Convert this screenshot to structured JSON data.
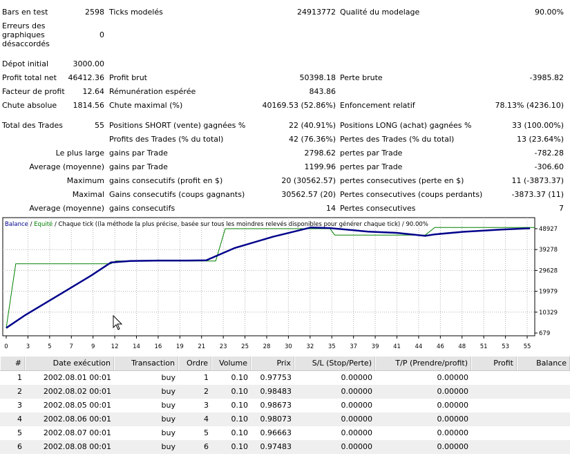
{
  "stats": {
    "row1": {
      "bars_label": "Bars en test",
      "bars_value": "2598",
      "ticks_label": "Ticks modelés",
      "ticks_value": "24913772",
      "quality_label": "Qualité du modelage",
      "quality_value": "90.00%"
    },
    "row2": {
      "errors_label_l1": "Erreurs des",
      "errors_label_l2": "graphiques",
      "errors_label_l3": "désaccordés",
      "errors_value": "0"
    },
    "row3": {
      "deposit_label": "Dépot initial",
      "deposit_value": "3000.00"
    },
    "row4": {
      "net_label": "Profit total net",
      "net_value": "46412.36",
      "gross_label": "Profit brut",
      "gross_value": "50398.18",
      "loss_label": "Perte brute",
      "loss_value": "-3985.82"
    },
    "row5": {
      "pf_label": "Facteur de profit",
      "pf_value": "12.64",
      "payoff_label": "Rémunération espérée",
      "payoff_value": "843.86"
    },
    "row6": {
      "abs_label": "Chute absolue",
      "abs_value": "1814.56",
      "max_label": "Chute maximal (%)",
      "max_value": "40169.53 (52.86%)",
      "rel_label": "Enfoncement relatif",
      "rel_value": "78.13% (4236.10)"
    },
    "row7": {
      "trades_label": "Total des Trades",
      "trades_value": "55",
      "short_label": "Positions SHORT (vente) gagnées %",
      "short_value": "22 (40.91%)",
      "long_label": "Positions LONG (achat) gagnées %",
      "long_value": "33 (100.00%)"
    },
    "row8": {
      "ptrades_label": "Profits des Trades (% du total)",
      "ptrades_value": "42 (76.36%)",
      "ltrades_label": "Pertes des Trades (% du total)",
      "ltrades_value": "13 (23.64%)"
    },
    "row9": {
      "prefix": "Le plus large",
      "gain_label": "gains par Trade",
      "gain_value": "2798.62",
      "loss_label": "pertes par Trade",
      "loss_value": "-782.28"
    },
    "row10": {
      "prefix": "Average (moyenne)",
      "gain_label": "gains par Trade",
      "gain_value": "1199.96",
      "loss_label": "pertes par Trade",
      "loss_value": "-306.60"
    },
    "row11": {
      "prefix": "Maximum",
      "gain_label": "gains consecutifs (profit en $)",
      "gain_value": "20 (30562.57)",
      "loss_label": "pertes consecutives (perte en $)",
      "loss_value": "11 (-3873.37)"
    },
    "row12": {
      "prefix": "Maximal",
      "gain_label": "Gains consecutifs (coups gagnants)",
      "gain_value": "30562.57 (20)",
      "loss_label": "Pertes consecutives (coups perdants)",
      "loss_value": "-3873.37 (11)"
    },
    "row13": {
      "prefix": "Average (moyenne)",
      "gain_label": "gains consecutifs",
      "gain_value": "14",
      "loss_label": "Pertes consecutives",
      "loss_value": "7"
    }
  },
  "chart_data": {
    "type": "line",
    "legend": {
      "balance": "Balance",
      "sep1": " / ",
      "equity": "Equité",
      "rest": " / Chaque tick ((la méthode la plus précise, basée sur tous les moindres relevés disponibles pour générer chaque tick) / 90.00%"
    },
    "x_ticks": [
      "0",
      "3",
      "5",
      "7",
      "9",
      "12",
      "14",
      "16",
      "19",
      "21",
      "23",
      "25",
      "28",
      "30",
      "32",
      "35",
      "37",
      "39",
      "41",
      "44",
      "46",
      "48",
      "51",
      "53",
      "55"
    ],
    "y_ticks": [
      "48927",
      "39278",
      "29628",
      "19979",
      "10329",
      "679"
    ],
    "ylim": [
      679,
      48927
    ],
    "xlim": [
      0,
      55.5
    ],
    "colors": {
      "balance": "#00008b",
      "equity": "#008000",
      "grid": "#b0b0b0"
    },
    "series": [
      {
        "name": "Balance",
        "x": [
          0,
          2,
          6,
          9,
          11,
          13,
          16,
          19,
          21,
          24,
          28,
          32,
          34,
          38,
          41,
          44,
          45,
          48,
          52,
          55
        ],
        "y": [
          3000,
          9000,
          19500,
          27500,
          33300,
          34000,
          34200,
          34200,
          34300,
          40000,
          45200,
          49500,
          49200,
          47600,
          47000,
          45600,
          46300,
          47500,
          48500,
          49100
        ]
      },
      {
        "name": "Equité",
        "x": [
          0,
          1,
          11,
          11.5,
          22,
          23,
          34,
          34.5,
          44,
          45,
          55.5
        ],
        "y": [
          3000,
          32700,
          32700,
          34000,
          34000,
          48927,
          48927,
          46000,
          46000,
          49500,
          49500
        ]
      }
    ]
  },
  "table": {
    "headers": [
      "#",
      "Date exécution",
      "Transaction",
      "Ordre",
      "Volume",
      "Prix",
      "S/L (Stop/Perte)",
      "T/P (Prendre/profit)",
      "Profit",
      "Balance"
    ],
    "rows": [
      [
        "1",
        "2002.08.01 00:01",
        "buy",
        "1",
        "0.10",
        "0.97753",
        "0.00000",
        "0.00000",
        "",
        ""
      ],
      [
        "2",
        "2002.08.02 00:01",
        "buy",
        "2",
        "0.10",
        "0.98483",
        "0.00000",
        "0.00000",
        "",
        ""
      ],
      [
        "3",
        "2002.08.05 00:01",
        "buy",
        "3",
        "0.10",
        "0.98673",
        "0.00000",
        "0.00000",
        "",
        ""
      ],
      [
        "4",
        "2002.08.06 00:01",
        "buy",
        "4",
        "0.10",
        "0.98073",
        "0.00000",
        "0.00000",
        "",
        ""
      ],
      [
        "5",
        "2002.08.07 00:01",
        "buy",
        "5",
        "0.10",
        "0.96663",
        "0.00000",
        "0.00000",
        "",
        ""
      ],
      [
        "6",
        "2002.08.08 00:01",
        "buy",
        "6",
        "0.10",
        "0.97483",
        "0.00000",
        "0.00000",
        "",
        ""
      ]
    ]
  }
}
